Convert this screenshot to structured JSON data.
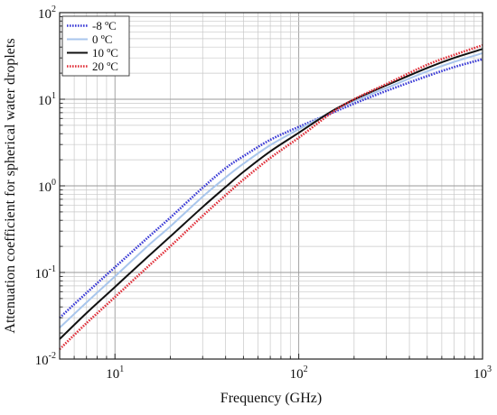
{
  "chart_data": {
    "type": "line",
    "title": "",
    "xlabel": "Frequency (GHz)",
    "ylabel": "Attenuation coefficient for spherical water droplets",
    "x_scale": "log",
    "y_scale": "log",
    "xlim": [
      5,
      1000
    ],
    "ylim": [
      0.01,
      100
    ],
    "grid": true,
    "legend_position": "top-left",
    "x_ticks": [
      {
        "base": "10",
        "exp": "1",
        "value": 10
      },
      {
        "base": "10",
        "exp": "2",
        "value": 100
      },
      {
        "base": "10",
        "exp": "3",
        "value": 1000
      }
    ],
    "y_ticks": [
      {
        "base": "10",
        "exp": "-2",
        "value": 0.01
      },
      {
        "base": "10",
        "exp": "-1",
        "value": 0.1
      },
      {
        "base": "10",
        "exp": "0",
        "value": 1
      },
      {
        "base": "10",
        "exp": "1",
        "value": 10
      },
      {
        "base": "10",
        "exp": "2",
        "value": 100
      }
    ],
    "series": [
      {
        "name": "-8 ºC",
        "color": "#3a3ad6",
        "style": "dotted",
        "x": [
          5,
          7,
          10,
          15,
          20,
          30,
          40,
          50,
          70,
          100,
          150,
          200,
          300,
          500,
          700,
          1000
        ],
        "y": [
          0.03,
          0.058,
          0.115,
          0.25,
          0.43,
          0.95,
          1.6,
          2.2,
          3.4,
          4.8,
          6.9,
          8.9,
          12.5,
          18.5,
          23.5,
          29.0
        ]
      },
      {
        "name": "0 ºC",
        "color": "#a9c6ec",
        "style": "solid",
        "x": [
          5,
          7,
          10,
          15,
          20,
          30,
          40,
          50,
          70,
          100,
          150,
          200,
          300,
          500,
          700,
          1000
        ],
        "y": [
          0.023,
          0.045,
          0.09,
          0.2,
          0.34,
          0.75,
          1.25,
          1.8,
          2.95,
          4.5,
          7.1,
          9.5,
          13.5,
          21.0,
          27.0,
          34.0
        ]
      },
      {
        "name": "10 ºC",
        "color": "#111111",
        "style": "solid",
        "x": [
          5,
          7,
          10,
          15,
          20,
          30,
          40,
          50,
          70,
          100,
          150,
          200,
          300,
          500,
          700,
          1000
        ],
        "y": [
          0.017,
          0.034,
          0.068,
          0.15,
          0.26,
          0.57,
          0.97,
          1.45,
          2.5,
          4.1,
          7.2,
          9.9,
          14.5,
          23.0,
          30.0,
          38.0
        ]
      },
      {
        "name": "20 ºC",
        "color": "#e0303a",
        "style": "dotted",
        "x": [
          5,
          7,
          10,
          15,
          20,
          30,
          40,
          50,
          70,
          100,
          150,
          200,
          300,
          500,
          700,
          1000
        ],
        "y": [
          0.013,
          0.026,
          0.052,
          0.115,
          0.2,
          0.45,
          0.78,
          1.18,
          2.1,
          3.6,
          6.9,
          10.0,
          15.0,
          25.0,
          32.5,
          42.0
        ]
      }
    ]
  }
}
